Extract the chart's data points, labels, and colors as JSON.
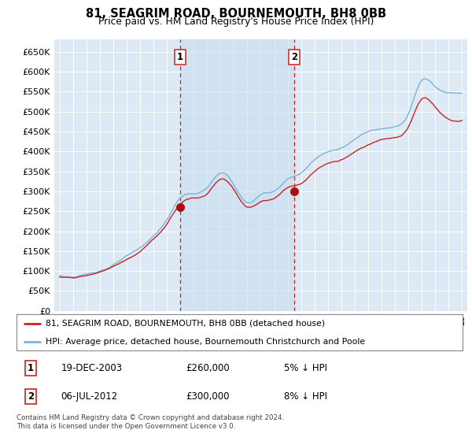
{
  "title": "81, SEAGRIM ROAD, BOURNEMOUTH, BH8 0BB",
  "subtitle": "Price paid vs. HM Land Registry's House Price Index (HPI)",
  "legend_line1": "81, SEAGRIM ROAD, BOURNEMOUTH, BH8 0BB (detached house)",
  "legend_line2": "HPI: Average price, detached house, Bournemouth Christchurch and Poole",
  "annotation1": {
    "num": "1",
    "date": "19-DEC-2003",
    "price": "£260,000",
    "pct": "5% ↓ HPI"
  },
  "annotation2": {
    "num": "2",
    "date": "06-JUL-2012",
    "price": "£300,000",
    "pct": "8% ↓ HPI"
  },
  "footer": "Contains HM Land Registry data © Crown copyright and database right 2024.\nThis data is licensed under the Open Government Licence v3.0.",
  "hpi_color": "#7ab3d4",
  "price_color": "#cc2222",
  "marker_color": "#aa1111",
  "shade_color": "#ddeaf5",
  "background_plot": "#ddeaf5",
  "background_fig": "#ffffff",
  "grid_color": "#ffffff",
  "ylim": [
    0,
    680000
  ],
  "yticks": [
    0,
    50000,
    100000,
    150000,
    200000,
    250000,
    300000,
    350000,
    400000,
    450000,
    500000,
    550000,
    600000,
    650000
  ],
  "sale1_x": 2004.0,
  "sale1_y": 260000,
  "sale2_x": 2012.5,
  "sale2_y": 300000,
  "vline1_x": 2004.0,
  "vline2_x": 2012.5,
  "xlim_left": 1994.6,
  "xlim_right": 2025.4
}
